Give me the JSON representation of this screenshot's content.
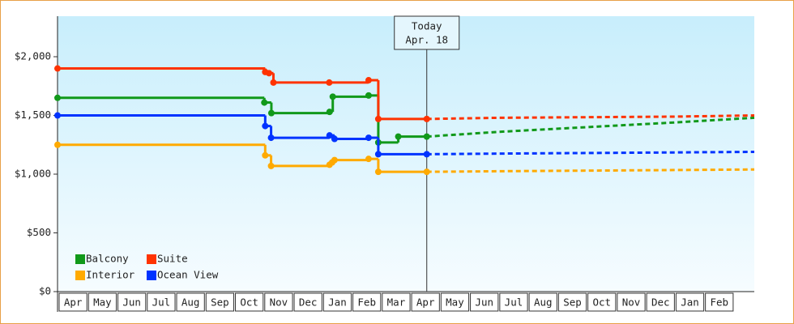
{
  "chart_data": {
    "type": "step-line",
    "ylim": [
      0,
      2345
    ],
    "yticks": [
      {
        "value": 0,
        "label": "$0"
      },
      {
        "value": 500,
        "label": "$500"
      },
      {
        "value": 1000,
        "label": "$1,000"
      },
      {
        "value": 1500,
        "label": "$1,500"
      },
      {
        "value": 2000,
        "label": "$2,000"
      }
    ],
    "xlim": [
      0,
      23.72
    ],
    "x_labels": [
      "Apr",
      "May",
      "Jun",
      "Jul",
      "Aug",
      "Sep",
      "Oct",
      "Nov",
      "Dec",
      "Jan",
      "Feb",
      "Mar",
      "Apr",
      "May",
      "Jun",
      "Jul",
      "Aug",
      "Sep",
      "Oct",
      "Nov",
      "Dec",
      "Jan",
      "Feb"
    ],
    "today": {
      "x": 12.57,
      "label": "Today",
      "date": "Apr. 18"
    },
    "legend": "lower left",
    "series": [
      {
        "name": "Balcony",
        "color": "#11991a",
        "x": [
          0,
          7.04,
          7.28,
          9.26,
          9.37,
          10.59,
          10.92,
          11.6,
          12.57
        ],
        "values": [
          1650,
          1610,
          1520,
          1530,
          1660,
          1670,
          1270,
          1320,
          1320
        ],
        "forecast": {
          "x": [
            12.57,
            15,
            18,
            21,
            23.72
          ],
          "values": [
            1320,
            1360,
            1400,
            1440,
            1480
          ]
        }
      },
      {
        "name": "Suite",
        "color": "#ff3300",
        "x": [
          0,
          7.07,
          7.2,
          7.35,
          9.25,
          10.59,
          10.92,
          12.57
        ],
        "values": [
          1900,
          1870,
          1860,
          1780,
          1780,
          1800,
          1470,
          1470
        ],
        "forecast": {
          "x": [
            12.57,
            15,
            18,
            21,
            23.72
          ],
          "values": [
            1470,
            1480,
            1485,
            1490,
            1500
          ]
        }
      },
      {
        "name": "Interior",
        "color": "#ffaa00",
        "x": [
          0,
          7.07,
          7.27,
          9.26,
          9.35,
          9.43,
          10.59,
          10.92,
          12.57
        ],
        "values": [
          1250,
          1160,
          1070,
          1080,
          1100,
          1120,
          1130,
          1020,
          1020
        ],
        "forecast": {
          "x": [
            12.57,
            15,
            18,
            21,
            23.72
          ],
          "values": [
            1020,
            1025,
            1030,
            1035,
            1040
          ]
        }
      },
      {
        "name": "Ocean View",
        "color": "#0033ff",
        "x": [
          0,
          7.07,
          7.27,
          9.26,
          9.43,
          10.59,
          10.92,
          12.57
        ],
        "values": [
          1500,
          1410,
          1310,
          1330,
          1300,
          1310,
          1170,
          1170
        ],
        "forecast": {
          "x": [
            12.57,
            15,
            18,
            21,
            23.72
          ],
          "values": [
            1170,
            1175,
            1180,
            1185,
            1190
          ]
        }
      }
    ]
  }
}
